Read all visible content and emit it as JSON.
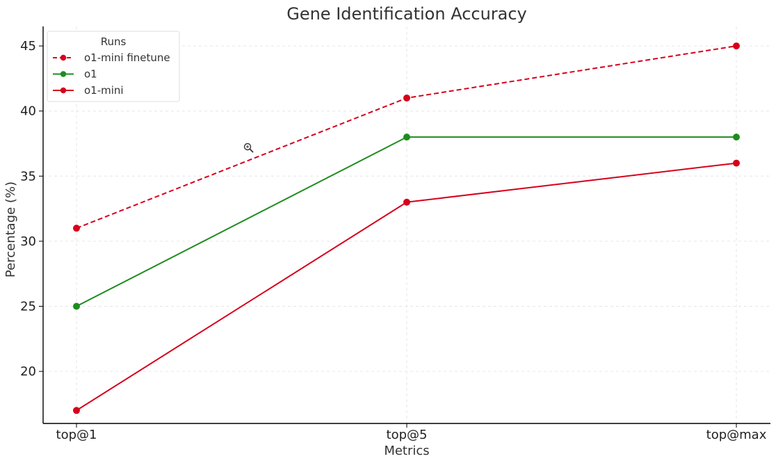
{
  "chart_data": {
    "type": "line",
    "title": "Gene Identification Accuracy",
    "xlabel": "Metrics",
    "ylabel": "Percentage (%)",
    "categories": [
      "top@1",
      "top@5",
      "top@max"
    ],
    "ylim": [
      16,
      46.5
    ],
    "yticks": [
      20,
      25,
      30,
      35,
      40,
      45
    ],
    "grid": true,
    "legend": {
      "title": "Runs",
      "placement": "top-left"
    },
    "series": [
      {
        "name": "o1-mini finetune",
        "values": [
          31,
          41,
          45
        ],
        "color": "#d6001c",
        "linestyle": "dashed"
      },
      {
        "name": "o1",
        "values": [
          25,
          38,
          38
        ],
        "color": "#1e8c1e",
        "linestyle": "solid"
      },
      {
        "name": "o1-mini",
        "values": [
          17,
          33,
          36
        ],
        "color": "#d6001c",
        "linestyle": "solid"
      }
    ]
  }
}
